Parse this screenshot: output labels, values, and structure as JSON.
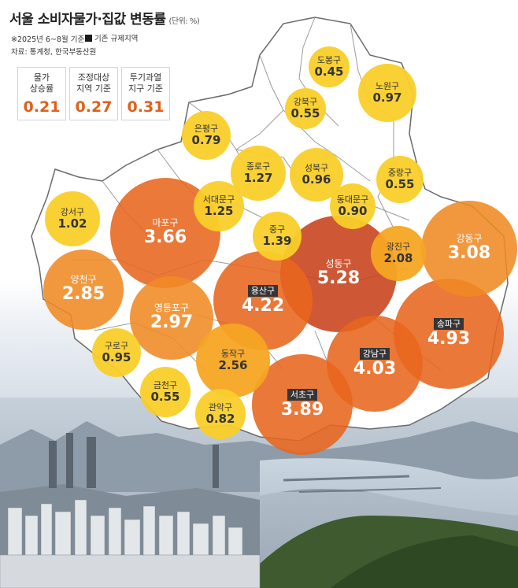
{
  "header": {
    "title": "서울 소비자물가·집값 변동률",
    "unit": "(단위: %)",
    "note_period": "※2025년 6~8월 기준",
    "legend_label": "기존 규제지역",
    "source": "자료: 통계청, 한국부동산원"
  },
  "summary": [
    {
      "label": "물가\n상승률",
      "value": "0.21"
    },
    {
      "label": "조정대상\n지역 기준",
      "value": "0.27"
    },
    {
      "label": "투기과열\n지구 기준",
      "value": "0.31"
    }
  ],
  "colors": {
    "yellow": "#f9cf2a",
    "orange_light": "#f6a623",
    "orange": "#f08a24",
    "orange_deep": "#e8661e",
    "red_brown": "#c8421a",
    "regulated_tag": "#1a1a1a"
  },
  "districts": [
    {
      "name": "도봉구",
      "value": "0.45",
      "regulated": false
    },
    {
      "name": "노원구",
      "value": "0.97",
      "regulated": false
    },
    {
      "name": "강북구",
      "value": "0.55",
      "regulated": false
    },
    {
      "name": "은평구",
      "value": "0.79",
      "regulated": false
    },
    {
      "name": "종로구",
      "value": "1.27",
      "regulated": false
    },
    {
      "name": "성북구",
      "value": "0.96",
      "regulated": false
    },
    {
      "name": "중랑구",
      "value": "0.55",
      "regulated": false
    },
    {
      "name": "서대문구",
      "value": "1.25",
      "regulated": false
    },
    {
      "name": "동대문구",
      "value": "0.90",
      "regulated": false
    },
    {
      "name": "강서구",
      "value": "1.02",
      "regulated": false
    },
    {
      "name": "마포구",
      "value": "3.66",
      "regulated": false
    },
    {
      "name": "중구",
      "value": "1.39",
      "regulated": false
    },
    {
      "name": "광진구",
      "value": "2.08",
      "regulated": false
    },
    {
      "name": "강동구",
      "value": "3.08",
      "regulated": false
    },
    {
      "name": "성동구",
      "value": "5.28",
      "regulated": false
    },
    {
      "name": "양천구",
      "value": "2.85",
      "regulated": false
    },
    {
      "name": "용산구",
      "value": "4.22",
      "regulated": true
    },
    {
      "name": "영등포구",
      "value": "2.97",
      "regulated": false
    },
    {
      "name": "송파구",
      "value": "4.93",
      "regulated": true
    },
    {
      "name": "구로구",
      "value": "0.95",
      "regulated": false
    },
    {
      "name": "동작구",
      "value": "2.56",
      "regulated": false
    },
    {
      "name": "강남구",
      "value": "4.03",
      "regulated": true
    },
    {
      "name": "금천구",
      "value": "0.55",
      "regulated": false
    },
    {
      "name": "관악구",
      "value": "0.82",
      "regulated": false
    },
    {
      "name": "서초구",
      "value": "3.89",
      "regulated": true
    }
  ]
}
